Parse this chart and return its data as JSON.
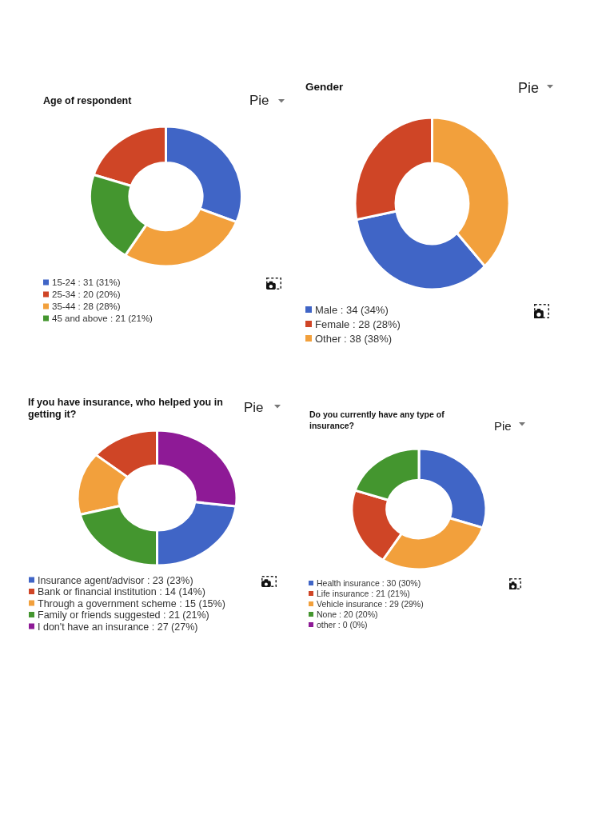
{
  "chart_data": [
    {
      "type": "donut",
      "title": "Age of respondent",
      "categories": [
        "15-24",
        "25-34",
        "35-44",
        "45 and above"
      ],
      "values": [
        31,
        20,
        28,
        21
      ],
      "colors": [
        "#4065c6",
        "#cf4526",
        "#f2a03c",
        "#44962f"
      ],
      "value_labels": [
        "31 (31%)",
        "20 (20%)",
        "28 (28%)",
        "21 (21%)"
      ],
      "legend": "bottom",
      "annotations": [
        "Pie"
      ]
    },
    {
      "type": "donut",
      "title": "Gender",
      "categories": [
        "Male",
        "Female",
        "Other"
      ],
      "values": [
        34,
        28,
        38
      ],
      "colors": [
        "#4065c6",
        "#cf4526",
        "#f2a03c"
      ],
      "value_labels": [
        "34 (34%)",
        "28 (28%)",
        "38 (38%)"
      ],
      "legend": "bottom",
      "annotations": [
        "Pie"
      ]
    },
    {
      "type": "donut",
      "title": "If you have insurance, who helped you in getting it?",
      "categories": [
        "Insurance agent/advisor",
        "Bank or financial institution",
        "Through a government scheme",
        "Family or friends suggested",
        "I don't have an insurance"
      ],
      "values": [
        23,
        14,
        15,
        21,
        27
      ],
      "colors": [
        "#4065c6",
        "#cf4526",
        "#f2a03c",
        "#44962f",
        "#8e1a96"
      ],
      "value_labels": [
        "23 (23%)",
        "14 (14%)",
        "15 (15%)",
        "21 (21%)",
        "27 (27%)"
      ],
      "legend": "bottom",
      "annotations": [
        "Pie"
      ]
    },
    {
      "type": "donut",
      "title": "Do you currently have any type of insurance?",
      "categories": [
        "Health insurance",
        "Life insurance",
        "Vehicle insurance",
        "None",
        "other"
      ],
      "values": [
        30,
        21,
        29,
        20,
        0
      ],
      "colors": [
        "#4065c6",
        "#cf4526",
        "#f2a03c",
        "#44962f",
        "#8e1a96"
      ],
      "value_labels": [
        "30 (30%)",
        "21 (21%)",
        "29 (29%)",
        "20 (20%)",
        "0 (0%)"
      ],
      "legend": "bottom",
      "annotations": [
        "Pie"
      ]
    }
  ]
}
